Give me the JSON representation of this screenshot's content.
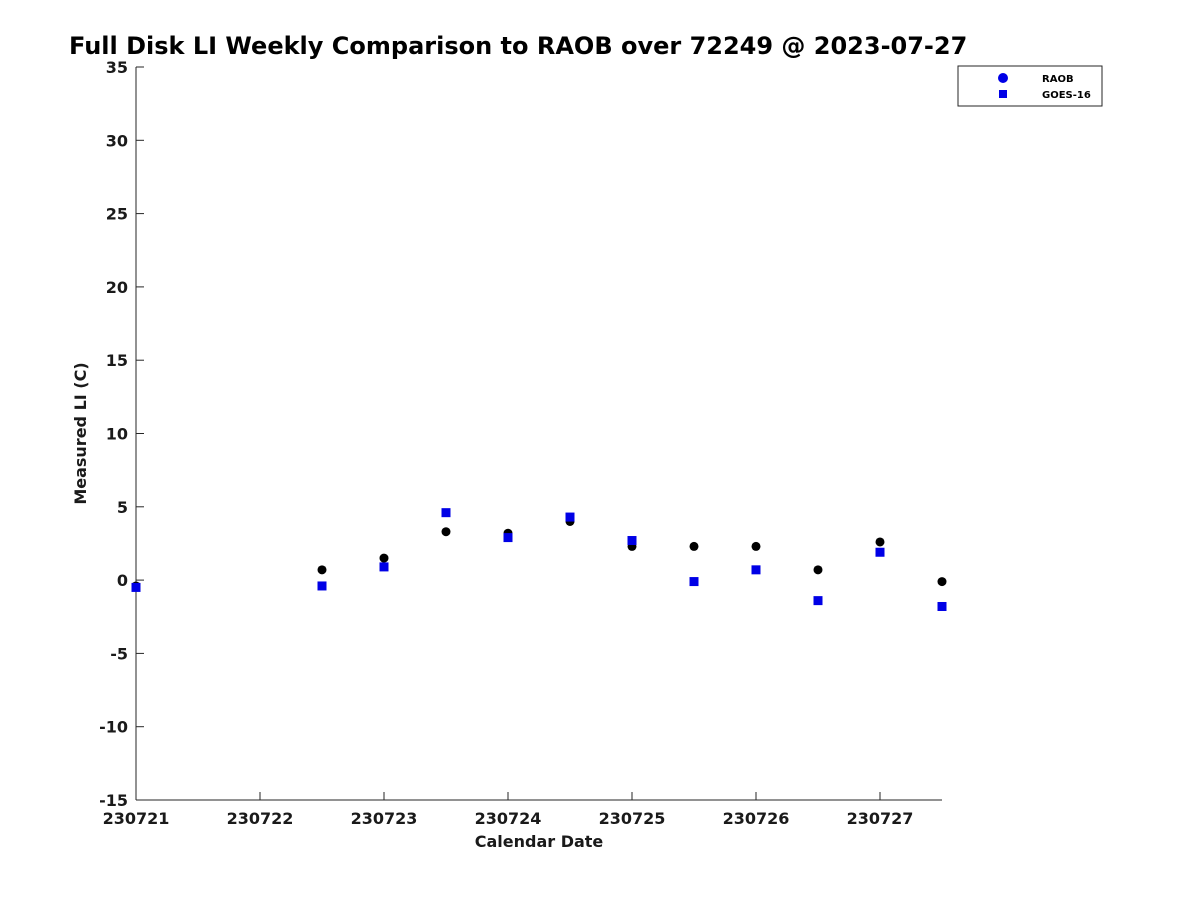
{
  "chart_data": {
    "type": "scatter",
    "title": "Full Disk LI Weekly Comparison to RAOB over 72249 @ 2023-07-27",
    "xlabel": "Calendar Date",
    "ylabel": "Measured LI (C)",
    "xlim": [
      0,
      6.5
    ],
    "ylim": [
      -15,
      35
    ],
    "x_tick_values": [
      0,
      1,
      2,
      3,
      4,
      5,
      6
    ],
    "x_tick_labels": [
      "230721",
      "230722",
      "230723",
      "230724",
      "230725",
      "230726",
      "230727"
    ],
    "y_ticks": [
      -15,
      -10,
      -5,
      0,
      5,
      10,
      15,
      20,
      25,
      30,
      35
    ],
    "grid": false,
    "legend_position": "top-right",
    "series": [
      {
        "name": "RAOB",
        "marker": "circle",
        "color": "#000000",
        "x": [
          0,
          1.5,
          2,
          2.5,
          3,
          3.5,
          4,
          4.5,
          5,
          5.5,
          6,
          6.5
        ],
        "y": [
          -0.4,
          0.7,
          1.5,
          3.3,
          3.2,
          4.0,
          2.3,
          2.3,
          2.3,
          0.7,
          2.6,
          -0.1
        ]
      },
      {
        "name": "GOES-16",
        "marker": "square",
        "color": "#0000e6",
        "x": [
          0,
          1.5,
          2,
          2.5,
          3,
          3.5,
          4,
          4.5,
          5,
          5.5,
          6,
          6.5
        ],
        "y": [
          -0.5,
          -0.4,
          0.9,
          4.6,
          2.9,
          4.3,
          2.7,
          -0.1,
          0.7,
          -1.4,
          1.9,
          -1.8
        ]
      }
    ],
    "legend_marker_colors": {
      "RAOB": "#0000e6",
      "GOES-16": "#0000e6"
    }
  }
}
